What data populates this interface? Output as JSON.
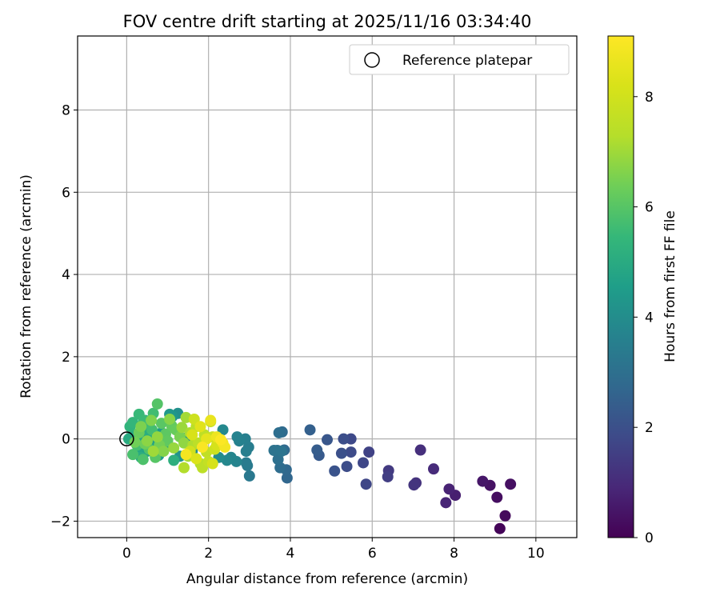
{
  "chart_data": {
    "type": "scatter",
    "title": "FOV centre drift starting at 2025/11/16 03:34:40",
    "xlabel": "Angular distance from reference (arcmin)",
    "ylabel": "Rotation from reference (arcmin)",
    "xlim": [
      -1.2,
      11.0
    ],
    "ylim": [
      -2.4,
      9.8
    ],
    "xticks": [
      0,
      2,
      4,
      6,
      8,
      10
    ],
    "yticks": [
      -2,
      0,
      2,
      4,
      6,
      8
    ],
    "grid": true,
    "legend": {
      "position": "top-right",
      "entries": [
        "Reference platepar"
      ]
    },
    "reference_point": {
      "x": 0,
      "y": 0
    },
    "colorbar": {
      "label": "Hours from first FF file",
      "colormap": "viridis",
      "range": [
        0,
        9.1
      ],
      "ticks": [
        0,
        2,
        4,
        6,
        8
      ]
    },
    "points": [
      {
        "x": 9.12,
        "y": -2.18,
        "h": 0.1
      },
      {
        "x": 9.25,
        "y": -1.87,
        "h": 0.2
      },
      {
        "x": 9.05,
        "y": -1.42,
        "h": 0.3
      },
      {
        "x": 9.38,
        "y": -1.1,
        "h": 0.35
      },
      {
        "x": 8.88,
        "y": -1.13,
        "h": 0.4
      },
      {
        "x": 8.7,
        "y": -1.03,
        "h": 0.5
      },
      {
        "x": 8.03,
        "y": -1.37,
        "h": 0.7
      },
      {
        "x": 7.88,
        "y": -1.22,
        "h": 0.8
      },
      {
        "x": 7.8,
        "y": -1.55,
        "h": 0.85
      },
      {
        "x": 7.5,
        "y": -0.73,
        "h": 1.0
      },
      {
        "x": 7.18,
        "y": -0.27,
        "h": 1.1
      },
      {
        "x": 7.07,
        "y": -1.07,
        "h": 1.2
      },
      {
        "x": 7.02,
        "y": -1.12,
        "h": 1.25
      },
      {
        "x": 6.4,
        "y": -0.77,
        "h": 1.4
      },
      {
        "x": 6.38,
        "y": -0.92,
        "h": 1.5
      },
      {
        "x": 5.92,
        "y": -0.32,
        "h": 1.6
      },
      {
        "x": 5.85,
        "y": -1.1,
        "h": 1.7
      },
      {
        "x": 5.78,
        "y": -0.58,
        "h": 1.75
      },
      {
        "x": 5.48,
        "y": 0.0,
        "h": 1.8
      },
      {
        "x": 5.48,
        "y": -0.32,
        "h": 1.85
      },
      {
        "x": 5.38,
        "y": -0.67,
        "h": 1.9
      },
      {
        "x": 5.3,
        "y": 0.0,
        "h": 1.95
      },
      {
        "x": 5.25,
        "y": -0.35,
        "h": 2.0
      },
      {
        "x": 5.08,
        "y": -0.78,
        "h": 2.1
      },
      {
        "x": 4.9,
        "y": -0.02,
        "h": 2.2
      },
      {
        "x": 4.7,
        "y": -0.4,
        "h": 2.3
      },
      {
        "x": 4.65,
        "y": -0.27,
        "h": 2.4
      },
      {
        "x": 4.48,
        "y": 0.22,
        "h": 2.5
      },
      {
        "x": 3.92,
        "y": -0.95,
        "h": 2.7
      },
      {
        "x": 3.9,
        "y": -0.75,
        "h": 2.75
      },
      {
        "x": 3.85,
        "y": -0.27,
        "h": 2.8
      },
      {
        "x": 3.8,
        "y": 0.17,
        "h": 2.85
      },
      {
        "x": 3.75,
        "y": -0.7,
        "h": 2.9
      },
      {
        "x": 3.72,
        "y": 0.15,
        "h": 2.95
      },
      {
        "x": 3.7,
        "y": -0.5,
        "h": 3.0
      },
      {
        "x": 3.68,
        "y": -0.28,
        "h": 3.05
      },
      {
        "x": 3.6,
        "y": -0.28,
        "h": 3.1
      },
      {
        "x": 3.78,
        "y": -0.3,
        "h": 3.15
      },
      {
        "x": 3.0,
        "y": -0.9,
        "h": 3.3
      },
      {
        "x": 2.95,
        "y": -0.65,
        "h": 3.35
      },
      {
        "x": 2.92,
        "y": -0.58,
        "h": 3.4
      },
      {
        "x": 2.98,
        "y": -0.2,
        "h": 3.45
      },
      {
        "x": 2.92,
        "y": -0.3,
        "h": 3.5
      },
      {
        "x": 2.9,
        "y": 0.0,
        "h": 3.55
      },
      {
        "x": 2.75,
        "y": -0.05,
        "h": 3.6
      },
      {
        "x": 2.7,
        "y": 0.05,
        "h": 3.65
      },
      {
        "x": 2.68,
        "y": -0.55,
        "h": 3.7
      },
      {
        "x": 2.55,
        "y": -0.45,
        "h": 3.75
      },
      {
        "x": 2.45,
        "y": -0.52,
        "h": 3.8
      },
      {
        "x": 2.35,
        "y": 0.22,
        "h": 3.85
      },
      {
        "x": 2.3,
        "y": -0.05,
        "h": 3.9
      },
      {
        "x": 2.25,
        "y": -0.45,
        "h": 3.95
      },
      {
        "x": 1.6,
        "y": -0.3,
        "h": 4.0
      },
      {
        "x": 1.5,
        "y": 0.05,
        "h": 4.05
      },
      {
        "x": 1.25,
        "y": 0.62,
        "h": 4.1
      },
      {
        "x": 1.3,
        "y": -0.42,
        "h": 4.2
      },
      {
        "x": 1.12,
        "y": 0.55,
        "h": 4.3
      },
      {
        "x": 1.05,
        "y": 0.6,
        "h": 4.35
      },
      {
        "x": 0.95,
        "y": -0.2,
        "h": 4.4
      },
      {
        "x": 0.85,
        "y": 0.15,
        "h": 4.45
      },
      {
        "x": 0.78,
        "y": -0.4,
        "h": 4.5
      },
      {
        "x": 0.7,
        "y": 0.1,
        "h": 4.55
      },
      {
        "x": 0.6,
        "y": -0.05,
        "h": 4.6
      },
      {
        "x": 0.55,
        "y": 0.3,
        "h": 4.65
      },
      {
        "x": 0.5,
        "y": -0.3,
        "h": 4.7
      },
      {
        "x": 0.45,
        "y": 0.45,
        "h": 4.75
      },
      {
        "x": 0.4,
        "y": 0.0,
        "h": 4.8
      },
      {
        "x": 0.3,
        "y": -0.2,
        "h": 4.85
      },
      {
        "x": 0.22,
        "y": 0.1,
        "h": 4.9
      },
      {
        "x": 0.12,
        "y": 0.05,
        "h": 4.95
      },
      {
        "x": 0.05,
        "y": 0.0,
        "h": 5.0
      },
      {
        "x": 0.35,
        "y": -0.45,
        "h": 5.05
      },
      {
        "x": 0.5,
        "y": 0.1,
        "h": 5.1
      },
      {
        "x": 1.15,
        "y": -0.52,
        "h": 5.15
      },
      {
        "x": 0.08,
        "y": 0.3,
        "h": 5.3
      },
      {
        "x": 0.15,
        "y": 0.4,
        "h": 5.4
      },
      {
        "x": 0.3,
        "y": 0.6,
        "h": 5.5
      },
      {
        "x": 0.42,
        "y": 0.45,
        "h": 5.55
      },
      {
        "x": 0.55,
        "y": 0.38,
        "h": 5.6
      },
      {
        "x": 0.65,
        "y": 0.62,
        "h": 5.65
      },
      {
        "x": 0.62,
        "y": 0.22,
        "h": 5.7
      },
      {
        "x": 0.25,
        "y": -0.15,
        "h": 5.75
      },
      {
        "x": 0.15,
        "y": -0.38,
        "h": 5.8
      },
      {
        "x": 0.4,
        "y": -0.5,
        "h": 5.85
      },
      {
        "x": 0.55,
        "y": -0.25,
        "h": 5.9
      },
      {
        "x": 0.75,
        "y": 0.85,
        "h": 5.95
      },
      {
        "x": 0.7,
        "y": -0.45,
        "h": 6.0
      },
      {
        "x": 0.85,
        "y": 0.38,
        "h": 6.05
      },
      {
        "x": 0.95,
        "y": 0.12,
        "h": 6.1
      },
      {
        "x": 1.0,
        "y": -0.05,
        "h": 6.15
      },
      {
        "x": 1.1,
        "y": 0.32,
        "h": 6.2
      },
      {
        "x": 1.2,
        "y": 0.22,
        "h": 6.25
      },
      {
        "x": 0.3,
        "y": 0.15,
        "h": 6.3
      },
      {
        "x": 0.45,
        "y": -0.12,
        "h": 6.35
      },
      {
        "x": 0.2,
        "y": -0.08,
        "h": 6.4
      },
      {
        "x": 0.8,
        "y": -0.15,
        "h": 6.45
      },
      {
        "x": 1.3,
        "y": 0.05,
        "h": 6.5
      },
      {
        "x": 0.35,
        "y": 0.3,
        "h": 6.55
      },
      {
        "x": 0.6,
        "y": 0.45,
        "h": 6.6
      },
      {
        "x": 0.9,
        "y": -0.3,
        "h": 6.65
      },
      {
        "x": 1.05,
        "y": 0.48,
        "h": 6.7
      },
      {
        "x": 0.5,
        "y": -0.05,
        "h": 6.75
      },
      {
        "x": 1.4,
        "y": -0.1,
        "h": 6.8
      },
      {
        "x": 0.75,
        "y": 0.05,
        "h": 6.85
      },
      {
        "x": 1.15,
        "y": -0.22,
        "h": 6.9
      },
      {
        "x": 1.35,
        "y": 0.28,
        "h": 6.95
      },
      {
        "x": 0.65,
        "y": -0.3,
        "h": 7.0
      },
      {
        "x": 1.45,
        "y": 0.52,
        "h": 7.05
      },
      {
        "x": 1.5,
        "y": -0.42,
        "h": 7.1
      },
      {
        "x": 1.55,
        "y": 0.15,
        "h": 7.15
      },
      {
        "x": 1.62,
        "y": -0.15,
        "h": 7.2
      },
      {
        "x": 1.4,
        "y": -0.7,
        "h": 7.25
      },
      {
        "x": 1.8,
        "y": -0.6,
        "h": 7.3
      },
      {
        "x": 1.7,
        "y": 0.3,
        "h": 7.4
      },
      {
        "x": 1.75,
        "y": -0.1,
        "h": 7.45
      },
      {
        "x": 1.85,
        "y": -0.7,
        "h": 7.5
      },
      {
        "x": 1.9,
        "y": 0.1,
        "h": 7.55
      },
      {
        "x": 1.95,
        "y": -0.32,
        "h": 7.6
      },
      {
        "x": 2.0,
        "y": -0.55,
        "h": 7.65
      },
      {
        "x": 2.05,
        "y": 0.42,
        "h": 7.7
      },
      {
        "x": 2.1,
        "y": 0.05,
        "h": 7.8
      },
      {
        "x": 2.15,
        "y": -0.25,
        "h": 7.85
      },
      {
        "x": 1.65,
        "y": 0.48,
        "h": 7.9
      },
      {
        "x": 1.55,
        "y": -0.3,
        "h": 8.0
      },
      {
        "x": 2.2,
        "y": -0.15,
        "h": 8.1
      },
      {
        "x": 2.1,
        "y": -0.6,
        "h": 8.15
      },
      {
        "x": 1.6,
        "y": 0.1,
        "h": 8.2
      },
      {
        "x": 1.7,
        "y": -0.48,
        "h": 8.3
      },
      {
        "x": 1.8,
        "y": 0.3,
        "h": 8.4
      },
      {
        "x": 1.95,
        "y": 0.0,
        "h": 8.5
      },
      {
        "x": 2.05,
        "y": 0.45,
        "h": 8.6
      },
      {
        "x": 2.2,
        "y": 0.05,
        "h": 8.7
      },
      {
        "x": 2.35,
        "y": -0.1,
        "h": 8.8
      },
      {
        "x": 2.4,
        "y": -0.2,
        "h": 8.85
      },
      {
        "x": 1.45,
        "y": -0.38,
        "h": 8.9
      },
      {
        "x": 1.85,
        "y": -0.2,
        "h": 9.0
      },
      {
        "x": 2.3,
        "y": -0.02,
        "h": 9.05
      }
    ]
  }
}
